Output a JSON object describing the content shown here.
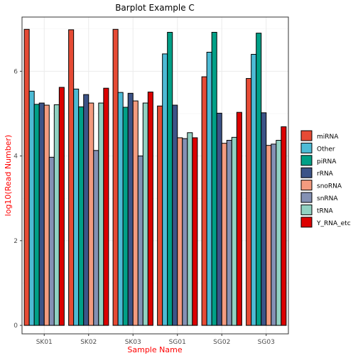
{
  "chart_data": {
    "type": "bar",
    "title": "Barplot Example C",
    "xlabel": "Sample Name",
    "ylabel": "log10(Read Number)",
    "categories": [
      "SK01",
      "SK02",
      "SK03",
      "SG01",
      "SG02",
      "SG03"
    ],
    "ylim": [
      -0.2,
      7.28
    ],
    "yticks": [
      0,
      2,
      4,
      6
    ],
    "grid": true,
    "legend_position": "right",
    "series": [
      {
        "name": "miRNA",
        "color": "#E64B35",
        "values": [
          6.99,
          6.98,
          6.99,
          5.18,
          5.87,
          5.83
        ]
      },
      {
        "name": "Other",
        "color": "#4DBBD5",
        "values": [
          5.53,
          5.58,
          5.5,
          6.41,
          6.45,
          6.4
        ]
      },
      {
        "name": "piRNA",
        "color": "#00A087",
        "values": [
          5.22,
          5.16,
          5.15,
          6.92,
          6.92,
          6.9
        ]
      },
      {
        "name": "rRNA",
        "color": "#3C5488",
        "values": [
          5.25,
          5.45,
          5.48,
          5.2,
          5.01,
          5.02
        ]
      },
      {
        "name": "snoRNA",
        "color": "#F39B7F",
        "values": [
          5.2,
          5.25,
          5.3,
          4.43,
          4.3,
          4.25
        ]
      },
      {
        "name": "snRNA",
        "color": "#8491B4",
        "values": [
          3.97,
          4.13,
          4.0,
          4.41,
          4.37,
          4.28
        ]
      },
      {
        "name": "tRNA",
        "color": "#91D1C2",
        "values": [
          5.21,
          5.25,
          5.25,
          4.55,
          4.44,
          4.37
        ]
      },
      {
        "name": "Y_RNA_etc",
        "color": "#DC0000",
        "values": [
          5.62,
          5.6,
          5.51,
          4.43,
          5.03,
          4.69
        ]
      }
    ]
  }
}
